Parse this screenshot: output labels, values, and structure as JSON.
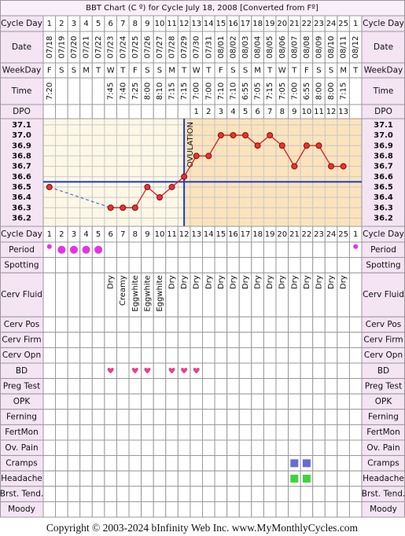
{
  "title": "BBT Chart (C º) for Cycle July 18, 2008  [Converted from Fº]",
  "row_labels": {
    "cycle_day": "Cycle Day",
    "date": "Date",
    "weekday": "WeekDay",
    "time": "Time",
    "dpo": "DPO"
  },
  "cycle_days": [
    1,
    2,
    3,
    4,
    5,
    6,
    7,
    8,
    9,
    10,
    11,
    12,
    13,
    14,
    15,
    16,
    17,
    18,
    19,
    20,
    21,
    22,
    23,
    24,
    25,
    1
  ],
  "weekdays": [
    "F",
    "S",
    "S",
    "M",
    "T",
    "W",
    "T",
    "F",
    "S",
    "S",
    "M",
    "T",
    "W",
    "T",
    "F",
    "S",
    "S",
    "M",
    "T",
    "W",
    "T",
    "F",
    "S",
    "S",
    "M",
    "T"
  ],
  "times": [
    "7:20",
    null,
    null,
    null,
    null,
    "7:45",
    "7:40",
    "7:25",
    "8:00",
    "8:10",
    "7:15",
    "7:15",
    "7:00",
    "7:00",
    "7:10",
    "7:10",
    "6:55",
    "7:05",
    "7:15",
    "7:05",
    "7:00",
    "6:55",
    "8:00",
    "8:00",
    "7:15",
    null
  ],
  "dpo": [
    null,
    null,
    null,
    null,
    null,
    null,
    null,
    null,
    null,
    null,
    null,
    null,
    1,
    2,
    3,
    4,
    5,
    6,
    7,
    8,
    9,
    10,
    11,
    12,
    13,
    null
  ],
  "chart_data": {
    "type": "line",
    "categories": [
      "07/18",
      "07/19",
      "07/20",
      "07/21",
      "07/22",
      "07/23",
      "07/24",
      "07/25",
      "07/26",
      "07/27",
      "07/28",
      "07/29",
      "07/30",
      "07/31",
      "08/01",
      "08/02",
      "08/03",
      "08/04",
      "08/05",
      "08/06",
      "08/07",
      "08/08",
      "08/09",
      "08/10",
      "08/11",
      "08/12"
    ],
    "values": [
      36.5,
      null,
      null,
      null,
      null,
      36.3,
      36.3,
      36.3,
      36.5,
      36.4,
      36.5,
      36.6,
      36.8,
      36.8,
      37.0,
      37.0,
      37.0,
      36.9,
      37.0,
      36.9,
      36.7,
      36.9,
      36.9,
      36.7,
      36.7,
      null
    ],
    "color": "#d42020",
    "ylim": [
      36.12,
      37.16
    ],
    "yticks": [
      37.1,
      {
        "value": 37,
        "label": "37.0"
      },
      36.9,
      36.8,
      36.7,
      36.6,
      36.5,
      36.4,
      36.3,
      36.2
    ],
    "grid": true,
    "coverline": 36.55,
    "ovulation_day": 12,
    "ovulation_label": "OVULATION"
  },
  "rows": [
    {
      "label": "Period",
      "period": [
        "light",
        "heavy",
        "heavy",
        "heavy",
        "heavy",
        null,
        null,
        null,
        null,
        null,
        null,
        null,
        null,
        null,
        null,
        null,
        null,
        null,
        null,
        null,
        null,
        null,
        null,
        null,
        null,
        "light"
      ],
      "color": "#e632e6"
    },
    {
      "label": "Spotting"
    },
    {
      "label": "Cerv Fluid",
      "texts": [
        null,
        null,
        null,
        null,
        null,
        "Dry",
        "Creamy",
        "Eggwhite",
        "Eggwhite",
        "Eggwhite",
        "Dry",
        "Dry",
        "Dry",
        "Dry",
        "Dry",
        "Dry",
        "Dry",
        "Dry",
        "Dry",
        "Dry",
        "Dry",
        "Dry",
        "Dry",
        "Dry",
        "Dry",
        null
      ]
    },
    {
      "label": "Cerv Pos"
    },
    {
      "label": "Cerv Firm"
    },
    {
      "label": "Cerv Opn"
    },
    {
      "label": "BD",
      "hearts": [
        false,
        false,
        false,
        false,
        false,
        true,
        false,
        true,
        true,
        false,
        true,
        true,
        true,
        false,
        false,
        false,
        false,
        false,
        false,
        false,
        false,
        false,
        false,
        false,
        false,
        false
      ],
      "color": "#e8408c"
    },
    {
      "label": "Preg Test"
    },
    {
      "label": "OPK"
    },
    {
      "label": "Ferning"
    },
    {
      "label": "FertMon"
    },
    {
      "label": "Ov. Pain"
    },
    {
      "label": "Cramps",
      "symbols": [
        false,
        false,
        false,
        false,
        false,
        false,
        false,
        false,
        false,
        false,
        false,
        false,
        false,
        false,
        false,
        false,
        false,
        false,
        false,
        false,
        true,
        true,
        false,
        false,
        false,
        false
      ],
      "color": "#6a6ad8"
    },
    {
      "label": "Headache",
      "symbols": [
        false,
        false,
        false,
        false,
        false,
        false,
        false,
        false,
        false,
        false,
        false,
        false,
        false,
        false,
        false,
        false,
        false,
        false,
        false,
        false,
        true,
        true,
        false,
        false,
        false,
        false
      ],
      "color": "#3fd43f"
    },
    {
      "label": "Brst. Tend."
    },
    {
      "label": "Moody"
    }
  ],
  "copyright": "Copyright © 2003-2024 bInfinity Web Inc.     www.MyMonthlyCycles.com"
}
